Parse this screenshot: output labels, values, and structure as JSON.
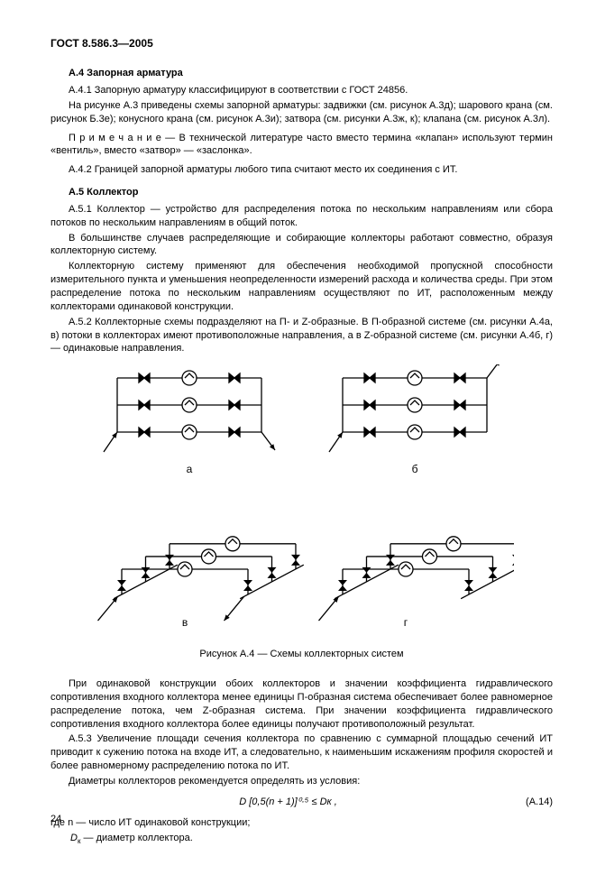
{
  "header": "ГОСТ 8.586.3—2005",
  "s_a4_title": "А.4  Запорная арматура",
  "p_a4_1": "А.4.1  Запорную арматуру классифицируют в соответствии с ГОСТ 24856.",
  "p_a4_1b": "На рисунке А.3 приведены схемы запорной арматуры: задвижки (см. рисунок А.3д); шарового крана (см. рисунок Б.3е); конусного крана (см. рисунок А.3и); затвора (см. рисунки А.3ж, к); клапана (см. рисунок А.3л).",
  "p_a4_note": "П р и м е ч а н и е — В технической литературе часто вместо термина «клапан» используют термин «вентиль», вместо «затвор» — «заслонка».",
  "p_a4_2": "А.4.2  Границей запорной арматуры любого типа считают место их соединения с ИТ.",
  "s_a5_title": "А.5  Коллектор",
  "p_a5_1": "А.5.1  Коллектор — устройство для распределения потока по нескольким направлениям или сбора потоков по нескольким направлениям в общий поток.",
  "p_a5_1b": "В большинстве случаев распределяющие и собирающие коллекторы работают совместно, образуя коллекторную систему.",
  "p_a5_1c": "Коллекторную систему применяют для обеспечения необходимой пропускной способности измерительного пункта и уменьшения неопределенности измерений расхода и количества среды. При этом распределение потока по нескольким направлениям осуществляют по ИТ, расположенным между коллекторами одинаковой конструкции.",
  "p_a5_2": "А.5.2  Коллекторные схемы подразделяют на П- и Z-образные. В П-образной системе (см. рисунки А.4а, в) потоки в коллекторах имеют противоположные направления, а в Z-образной системе (см. рисунки А.4б, г) — одинаковые направления.",
  "figcaption": "Рисунок А.4 — Схемы коллекторных систем",
  "p_after1": "При одинаковой конструкции обоих коллекторов и значении коэффициента гидравлического сопротивления входного коллектора менее единицы П-образная система обеспечивает более равномерное распределение потока, чем Z-образная система. При значении коэффициента гидравлического сопротивления входного коллектора более единицы получают противоположный результат.",
  "p_a5_3": "А.5.3  Увеличение площади сечения коллектора по сравнению с суммарной площадью сечений ИТ приводит к сужению потока на входе ИТ, а следовательно, к наименьшим искажениям профиля скоростей и более равномерному распределению потока по ИТ.",
  "p_a5_3b": "Диаметры коллекторов рекомендуется определять из условия:",
  "formula": "D [0,5(n + 1)]⁰·⁵ ≤ Dк ,",
  "formula_num": "(А.14)",
  "where1": "где n — число ИТ одинаковой конструкции;",
  "where2_pre": "D",
  "where2_sub": "к",
  "where2_post": " — диаметр коллектора.",
  "pagenum": "24",
  "diagram": {
    "labels": {
      "a": "а",
      "b": "б",
      "v": "в",
      "g": "г"
    },
    "stroke": "#000000",
    "fill": "#ffffff",
    "stroke_width": 1.3
  }
}
